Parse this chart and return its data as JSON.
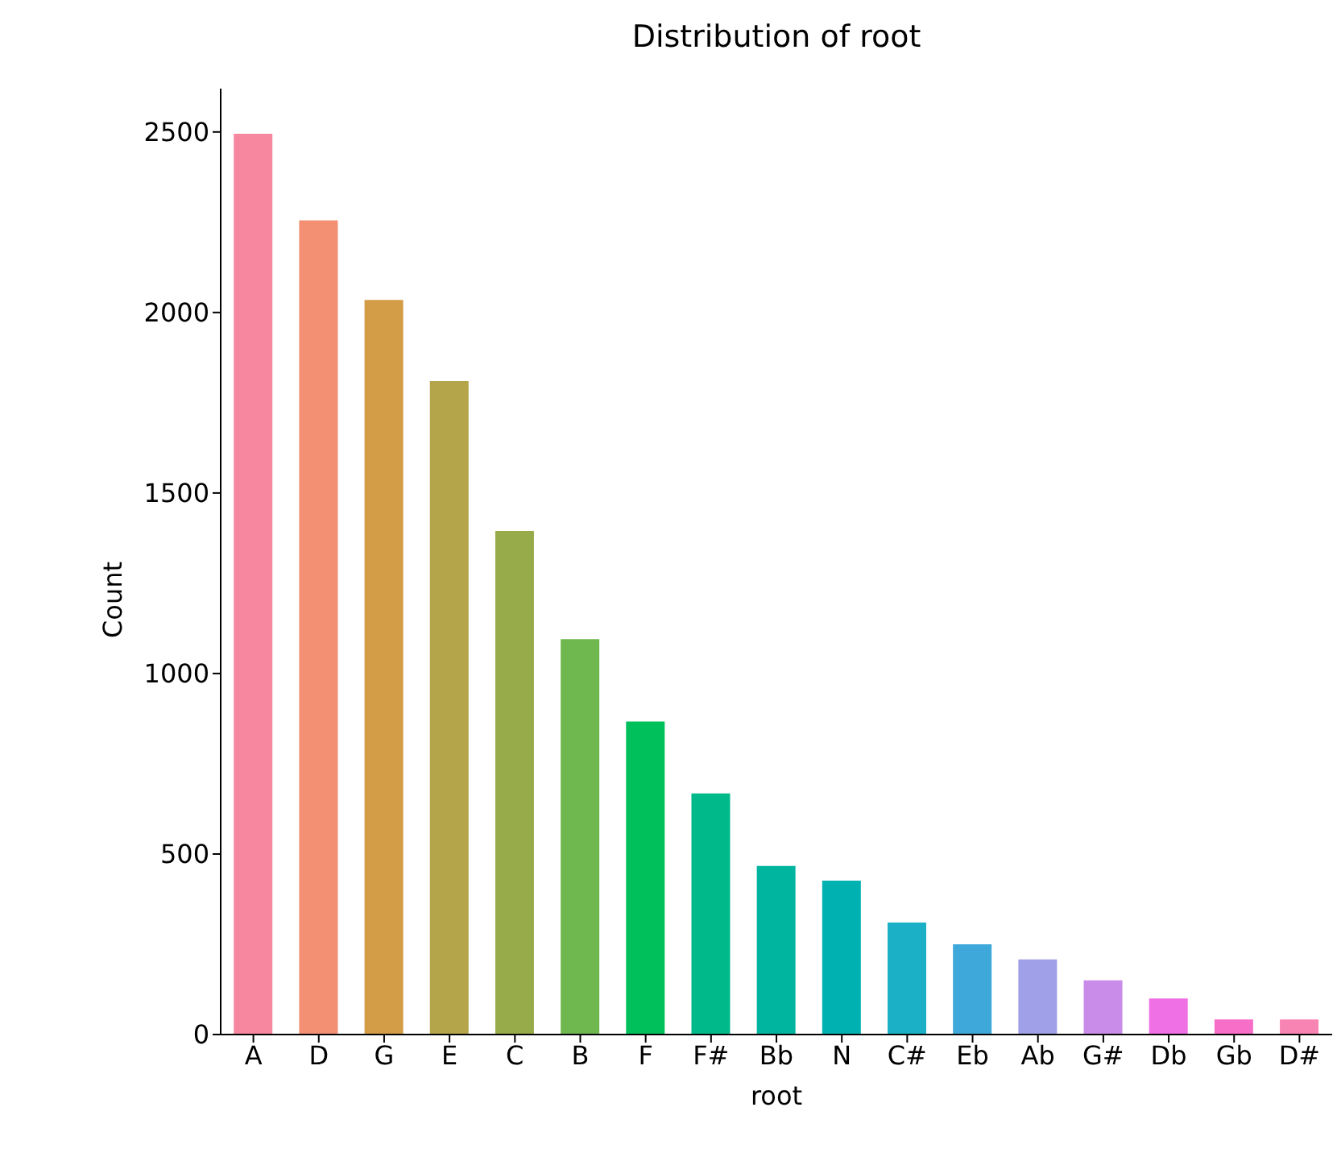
{
  "chart_data": {
    "type": "bar",
    "title": "Distribution of root",
    "xlabel": "root",
    "ylabel": "Count",
    "categories": [
      "A",
      "D",
      "G",
      "E",
      "C",
      "B",
      "F",
      "F#",
      "Bb",
      "N",
      "C#",
      "Eb",
      "Ab",
      "G#",
      "Db",
      "Gb",
      "D#"
    ],
    "values": [
      2495,
      2255,
      2035,
      1810,
      1395,
      1095,
      867,
      668,
      467,
      426,
      310,
      250,
      208,
      150,
      100,
      42,
      42
    ],
    "colors": [
      "#f7879f",
      "#f38f72",
      "#d39c47",
      "#b4a54b",
      "#98ab4a",
      "#6fb84f",
      "#00c05c",
      "#00b98a",
      "#00b5a0",
      "#00b1b1",
      "#1bb0c5",
      "#3fa8da",
      "#9fa0e8",
      "#c98ce8",
      "#ef6fe4",
      "#f76ec8",
      "#f884b4"
    ],
    "ylim": [
      0,
      2620
    ],
    "yticks": [
      0,
      500,
      1000,
      1500,
      2000,
      2500
    ],
    "grid": false,
    "legend": false
  }
}
